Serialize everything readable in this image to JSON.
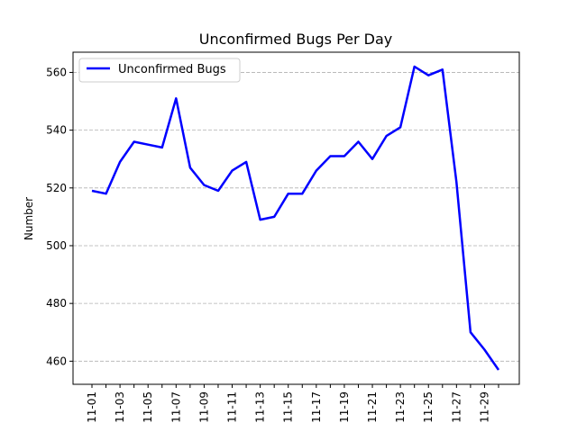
{
  "chart_data": {
    "type": "line",
    "title": "Unconfirmed Bugs Per Day",
    "xlabel": "",
    "ylabel": "Number",
    "x": [
      "11-01",
      "11-02",
      "11-03",
      "11-04",
      "11-05",
      "11-06",
      "11-07",
      "11-08",
      "11-09",
      "11-10",
      "11-11",
      "11-12",
      "11-13",
      "11-14",
      "11-15",
      "11-16",
      "11-17",
      "11-18",
      "11-19",
      "11-20",
      "11-21",
      "11-22",
      "11-23",
      "11-24",
      "11-25",
      "11-26",
      "11-27",
      "11-28",
      "11-29",
      "11-30"
    ],
    "x_tick_labels": [
      "11-01",
      "11-03",
      "11-05",
      "11-07",
      "11-09",
      "11-11",
      "11-13",
      "11-15",
      "11-17",
      "11-19",
      "11-21",
      "11-23",
      "11-25",
      "11-27",
      "11-29"
    ],
    "series": [
      {
        "name": "Unconfirmed Bugs",
        "color": "#0000ff",
        "values": [
          519,
          518,
          529,
          536,
          535,
          534,
          551,
          527,
          521,
          519,
          526,
          529,
          509,
          510,
          518,
          518,
          526,
          531,
          531,
          536,
          530,
          538,
          541,
          562,
          559,
          561,
          522,
          470,
          464,
          457
        ]
      }
    ],
    "ylim": [
      452,
      567
    ],
    "y_ticks": [
      460,
      480,
      500,
      520,
      540,
      560
    ],
    "grid": "horizontal dashed",
    "legend_position": "upper left"
  }
}
